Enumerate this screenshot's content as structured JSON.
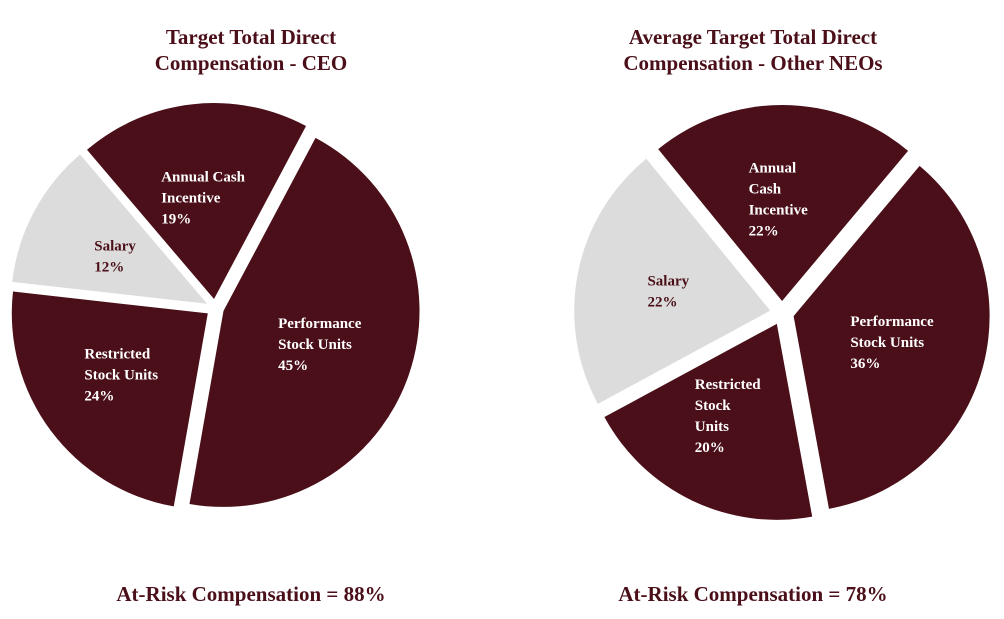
{
  "chart_data": [
    {
      "type": "pie",
      "title": [
        "Target Total Direct",
        "Compensation - CEO"
      ],
      "footer": "At-Risk Compensation = 88%",
      "slices": [
        {
          "label": [
            "Performance",
            "Stock Units"
          ],
          "value": 45,
          "value_text": "45%",
          "color": "#4a0f18"
        },
        {
          "label": [
            "Restricted",
            "Stock Units"
          ],
          "value": 24,
          "value_text": "24%",
          "color": "#4a0f18"
        },
        {
          "label": [
            "Salary"
          ],
          "value": 12,
          "value_text": "12%",
          "color": "#dcdcdc"
        },
        {
          "label": [
            "Annual Cash",
            "Incentive"
          ],
          "value": 19,
          "value_text": "19%",
          "color": "#4a0f18"
        }
      ]
    },
    {
      "type": "pie",
      "title": [
        "Average Target Total Direct",
        "Compensation - Other NEOs"
      ],
      "footer": "At-Risk Compensation = 78%",
      "slices": [
        {
          "label": [
            "Performance",
            "Stock Units"
          ],
          "value": 36,
          "value_text": "36%",
          "color": "#4a0f18"
        },
        {
          "label": [
            "Restricted",
            "Stock",
            "Units"
          ],
          "value": 20,
          "value_text": "20%",
          "color": "#4a0f18"
        },
        {
          "label": [
            "Salary"
          ],
          "value": 22,
          "value_text": "22%",
          "color": "#dcdcdc"
        },
        {
          "label": [
            "Annual",
            "Cash",
            "Incentive"
          ],
          "value": 22,
          "value_text": "22%",
          "color": "#4a0f18"
        }
      ]
    }
  ],
  "colors": {
    "text_dark": "#4a0f18",
    "text_on_dark": "#ffffff",
    "text_on_light": "#4a0f18"
  }
}
